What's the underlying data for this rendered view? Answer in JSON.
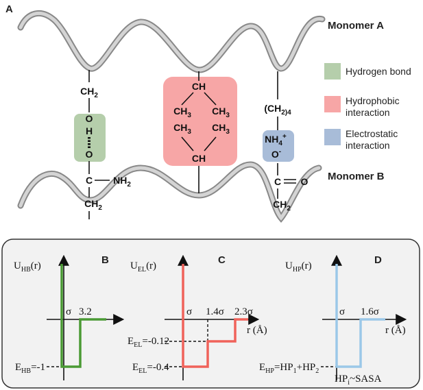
{
  "panel_a": {
    "label": "A",
    "monomer_a": "Monomer A",
    "monomer_b": "Monomer B",
    "legend": [
      [
        "Hydrogen bond"
      ],
      [
        "Hydrophobic",
        "interaction"
      ],
      [
        "Electrostatic",
        "interaction"
      ]
    ],
    "hb_group": {
      "top": [
        "CH",
        "2"
      ],
      "o1": "O",
      "h": "H",
      "o2": "O",
      "c": "C",
      "nh2": [
        "NH",
        "2"
      ],
      "bottom": [
        "CH",
        "2"
      ]
    },
    "hp_group": {
      "ch_top": "CH",
      "ch3": [
        "CH",
        "3"
      ],
      "ch_bottom": "CH"
    },
    "el_group": {
      "chain": [
        "(CH",
        "2)4"
      ],
      "nh4": [
        "NH",
        "4",
        "+"
      ],
      "o": [
        "O",
        "-"
      ],
      "c": "C",
      "o_double": "O",
      "bottom": [
        "CH",
        "2"
      ]
    }
  },
  "panel_b": {
    "label": "B",
    "ylabel": [
      "U",
      "HB",
      "(r)"
    ],
    "sigma": "σ",
    "x_tick": "3.2",
    "level": [
      "E",
      "HB",
      "=-1"
    ]
  },
  "panel_c": {
    "label": "C",
    "ylabel": [
      "U",
      "EL",
      "(r)"
    ],
    "sigma": "σ",
    "x_ticks": [
      "1.4σ",
      "2.3σ"
    ],
    "xlabel": "r (Å)",
    "levels": [
      [
        "E",
        "EL",
        "=-0.12"
      ],
      [
        "E",
        "EL",
        "=-0.4"
      ]
    ]
  },
  "panel_d": {
    "label": "D",
    "ylabel": [
      "U",
      "HP",
      "(r)"
    ],
    "sigma": "σ",
    "x_tick": "1.6σ",
    "xlabel": "r (Å)",
    "level": [
      "E",
      "HP",
      "=HP",
      "1",
      "+HP",
      "2"
    ],
    "note": [
      "HP",
      "i",
      "~SASA"
    ]
  }
}
